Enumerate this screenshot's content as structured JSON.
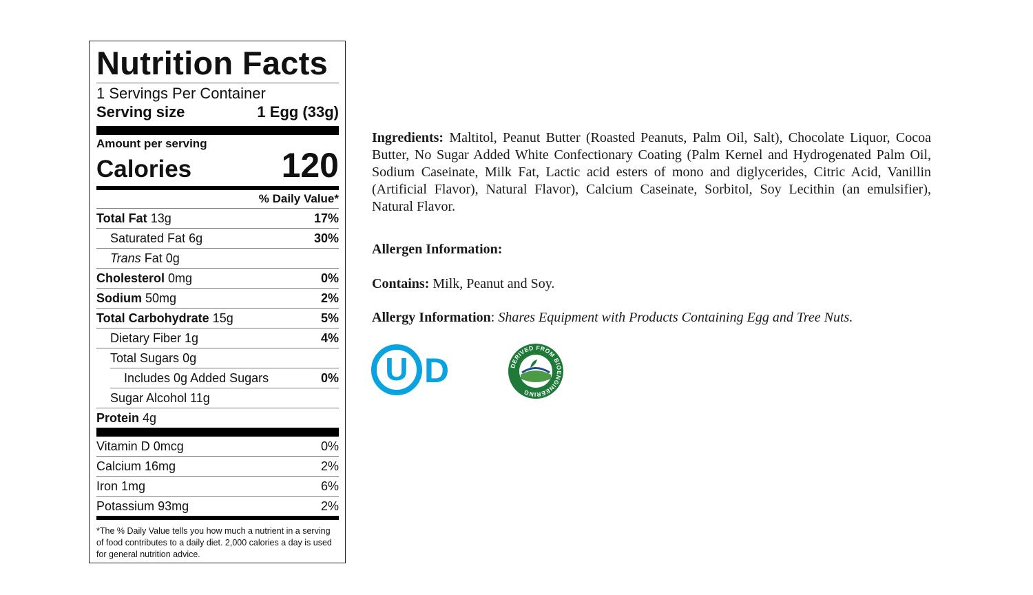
{
  "nutrition": {
    "title": "Nutrition Facts",
    "servings_per_container": "1 Servings Per Container",
    "serving_size_label": "Serving size",
    "serving_size_value": "1 Egg (33g)",
    "amount_per_serving": "Amount per serving",
    "calories_label": "Calories",
    "calories_value": "120",
    "daily_value_header": "% Daily Value*",
    "nutrients": [
      {
        "name": "Total Fat",
        "amount": "13g",
        "dv": "17%"
      },
      {
        "name": "Saturated Fat",
        "amount": "6g",
        "dv": "30%"
      },
      {
        "name": "Trans",
        "name_suffix": "Fat",
        "amount": "0g",
        "dv": ""
      },
      {
        "name": "Cholesterol",
        "amount": "0mg",
        "dv": "0%"
      },
      {
        "name": "Sodium",
        "amount": "50mg",
        "dv": "2%"
      },
      {
        "name": "Total Carbohydrate",
        "amount": "15g",
        "dv": "5%"
      },
      {
        "name": "Dietary Fiber",
        "amount": "1g",
        "dv": "4%"
      },
      {
        "name": "Total Sugars",
        "amount": "0g",
        "dv": ""
      },
      {
        "name": "Includes 0g Added Sugars",
        "amount": "",
        "dv": "0%"
      },
      {
        "name": "Sugar Alcohol",
        "amount": "11g",
        "dv": ""
      },
      {
        "name": "Protein",
        "amount": "4g",
        "dv": ""
      }
    ],
    "vitamins": [
      {
        "name": "Vitamin D",
        "amount": "0mcg",
        "dv": "0%"
      },
      {
        "name": "Calcium",
        "amount": "16mg",
        "dv": "2%"
      },
      {
        "name": "Iron",
        "amount": "1mg",
        "dv": "6%"
      },
      {
        "name": "Potassium",
        "amount": "93mg",
        "dv": "2%"
      }
    ],
    "footnote": "*The % Daily Value tells you how much a nutrient in a serving of food contributes to a daily diet. 2,000 calories a day is used for general nutrition advice."
  },
  "info": {
    "ingredients_label": "Ingredients:",
    "ingredients_text": "Maltitol, Peanut Butter (Roasted Peanuts, Palm Oil, Salt), Chocolate Liquor, Cocoa Butter, No Sugar Added White Confectionary Coating (Palm Kernel and Hydrogenated Palm Oil, Sodium Caseinate, Milk Fat, Lactic acid esters of mono and diglycerides, Citric Acid, Vanillin (Artificial Flavor), Natural Flavor), Calcium Caseinate, Sorbitol, Soy Lecithin (an emulsifier), Natural Flavor.",
    "allergen_heading": "Allergen Information:",
    "contains_label": "Contains:",
    "contains_text": "Milk, Peanut and Soy.",
    "allergy_label": "Allergy Information",
    "allergy_colon": ":",
    "allergy_text": "Shares Equipment with Products Containing Egg and Tree Nuts."
  },
  "logos": {
    "ud_text": "UD",
    "ud_color": "#0aa3e0",
    "bio_ring_text": "DERIVED FROM BIOENGINEERING",
    "bio_color": "#1f7a3a"
  }
}
